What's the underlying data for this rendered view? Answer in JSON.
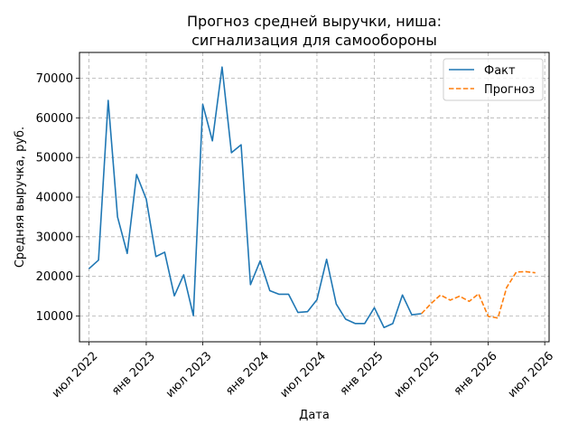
{
  "chart_data": {
    "type": "line",
    "title_line1": "Прогноз средней выручки, ниша:",
    "title_line2": "сигнализация для самообороны",
    "xlabel": "Дата",
    "ylabel": "Средняя выручка, руб.",
    "xlim": [
      "2022-06-01",
      "2026-07-15"
    ],
    "ylim": [
      3500,
      76500
    ],
    "grid": true,
    "legend_position": "top-right",
    "x_ticks": [
      {
        "date": "2022-07-01",
        "label": "июл 2022"
      },
      {
        "date": "2023-01-01",
        "label": "янв 2023"
      },
      {
        "date": "2023-07-01",
        "label": "июл 2023"
      },
      {
        "date": "2024-01-01",
        "label": "янв 2024"
      },
      {
        "date": "2024-07-01",
        "label": "июл 2024"
      },
      {
        "date": "2025-01-01",
        "label": "янв 2025"
      },
      {
        "date": "2025-07-01",
        "label": "июл 2025"
      },
      {
        "date": "2026-01-01",
        "label": "янв 2026"
      },
      {
        "date": "2026-07-01",
        "label": "июл 2026"
      }
    ],
    "y_ticks": [
      10000,
      20000,
      30000,
      40000,
      50000,
      60000,
      70000
    ],
    "series": [
      {
        "name": "Факт",
        "color": "#1f77b4",
        "style": "solid",
        "x": [
          "2022-07-01",
          "2022-08-01",
          "2022-09-01",
          "2022-10-01",
          "2022-11-01",
          "2022-12-01",
          "2023-01-01",
          "2023-02-01",
          "2023-03-01",
          "2023-04-01",
          "2023-05-01",
          "2023-06-01",
          "2023-07-01",
          "2023-08-01",
          "2023-09-01",
          "2023-10-01",
          "2023-11-01",
          "2023-12-01",
          "2024-01-01",
          "2024-02-01",
          "2024-03-01",
          "2024-04-01",
          "2024-05-01",
          "2024-06-01",
          "2024-07-01",
          "2024-08-01",
          "2024-09-01",
          "2024-10-01",
          "2024-11-01",
          "2024-12-01",
          "2025-01-01",
          "2025-02-01",
          "2025-03-01",
          "2025-04-01",
          "2025-05-01",
          "2025-06-01"
        ],
        "values": [
          21900,
          24100,
          64400,
          35000,
          25800,
          45700,
          39500,
          25000,
          26100,
          15100,
          20400,
          10100,
          63400,
          54200,
          72800,
          51200,
          53200,
          17900,
          23900,
          16400,
          15500,
          15500,
          10900,
          11100,
          14100,
          24300,
          13000,
          9200,
          8100,
          8100,
          12100,
          7100,
          8100,
          15300,
          10300,
          10600
        ]
      },
      {
        "name": "Прогноз",
        "color": "#ff7f0e",
        "style": "dashed",
        "x": [
          "2025-06-01",
          "2025-07-01",
          "2025-08-01",
          "2025-09-01",
          "2025-10-01",
          "2025-11-01",
          "2025-12-01",
          "2026-01-01",
          "2026-02-01",
          "2026-03-01",
          "2026-04-01",
          "2026-05-01",
          "2026-06-01"
        ],
        "values": [
          10600,
          13100,
          15300,
          14000,
          15000,
          13700,
          15600,
          9900,
          9500,
          17200,
          21100,
          21200,
          20900
        ]
      }
    ]
  }
}
